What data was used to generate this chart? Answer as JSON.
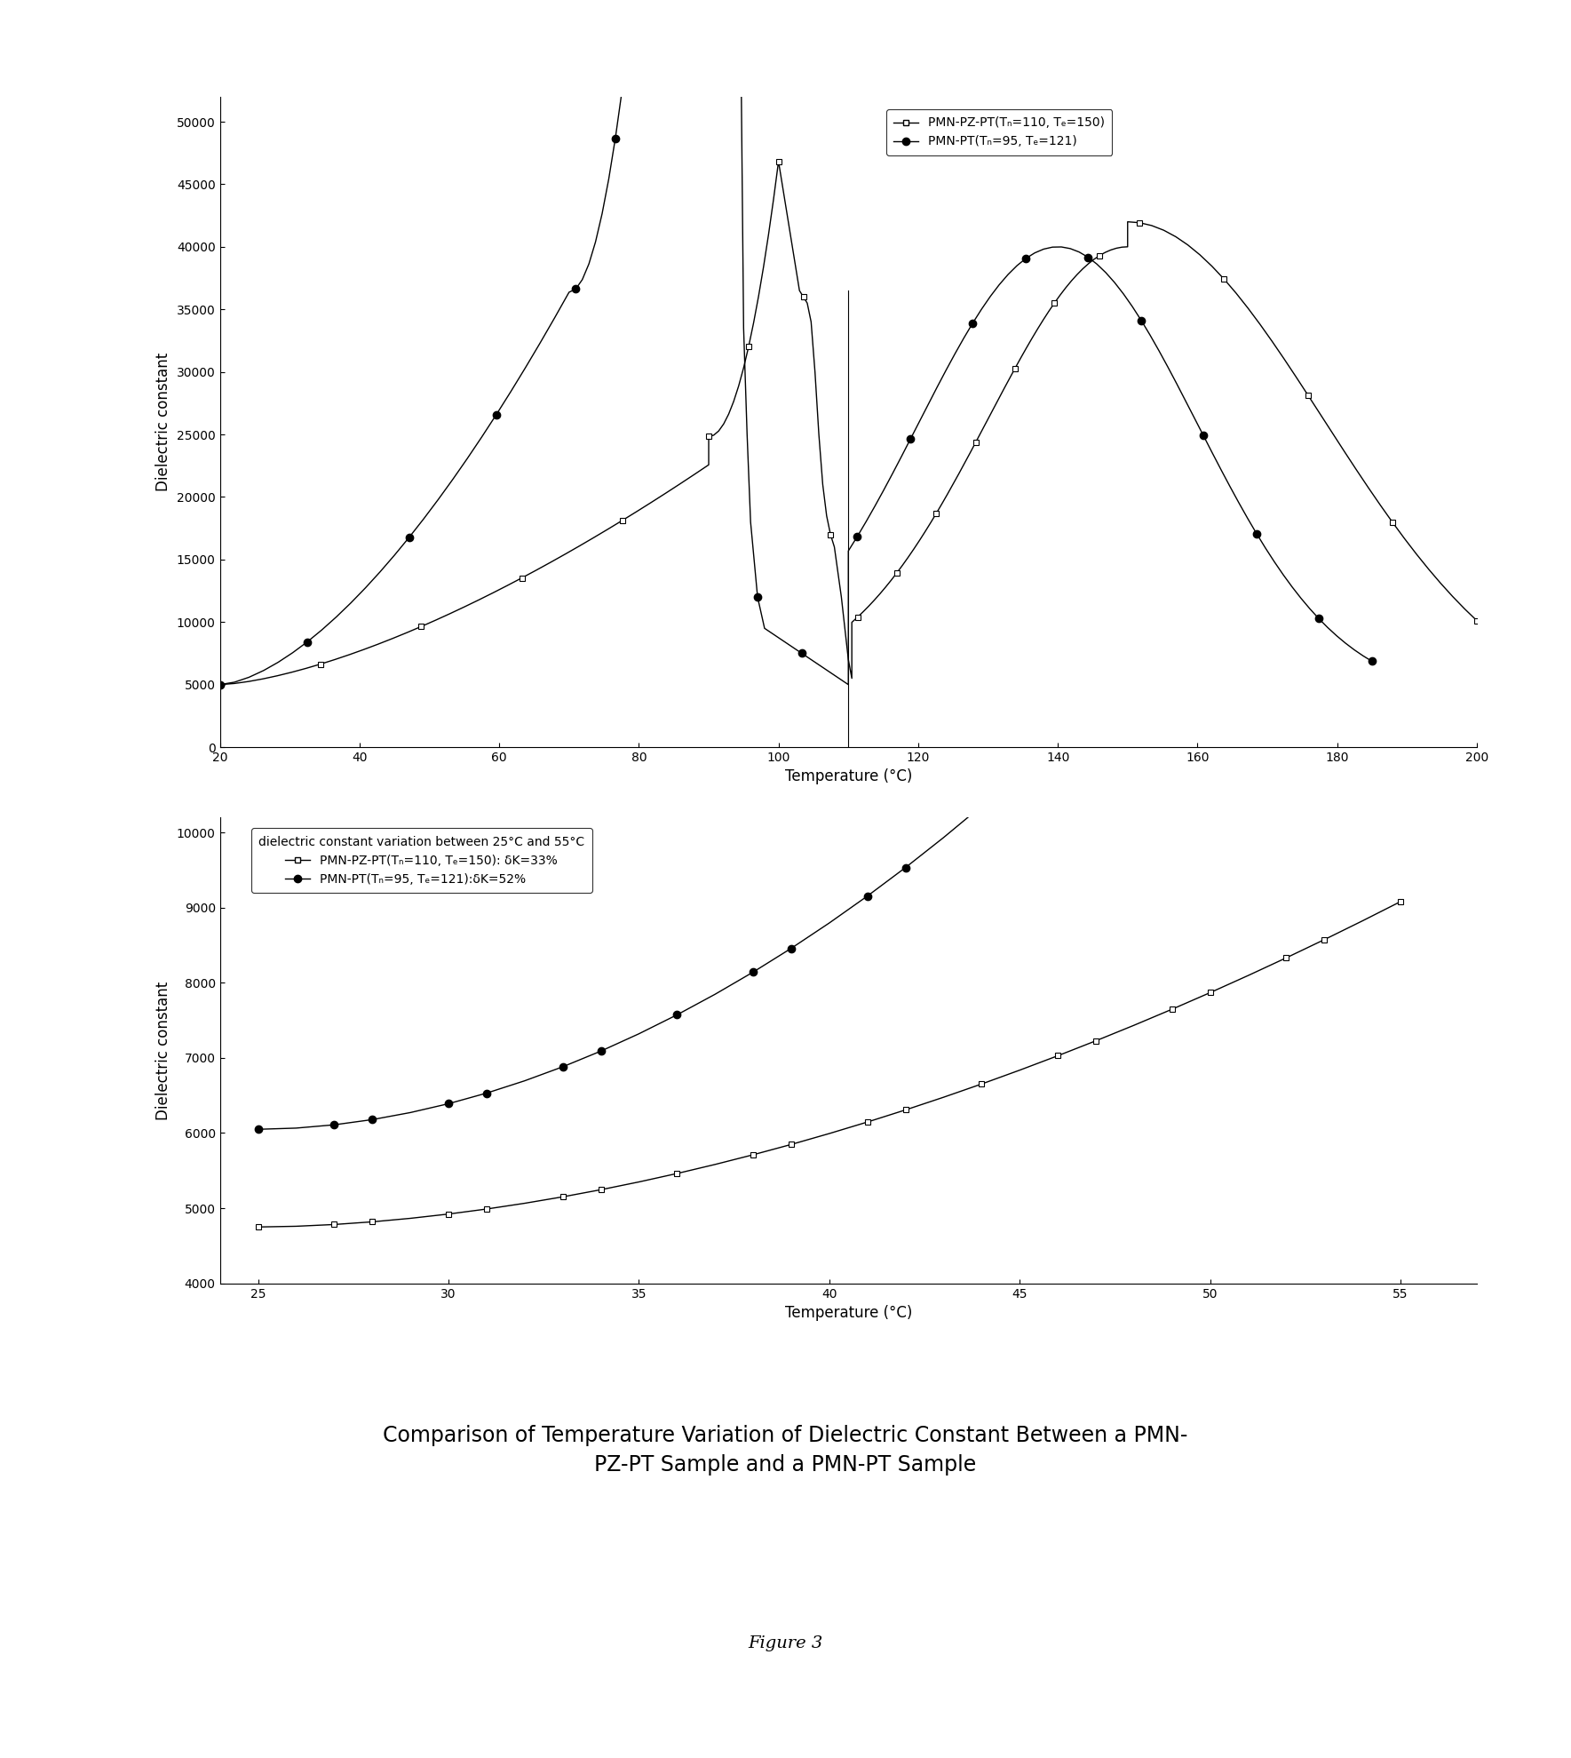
{
  "fig_width": 17.69,
  "fig_height": 19.79,
  "bg_color": "#ffffff",
  "plot1": {
    "xlim": [
      20,
      200
    ],
    "ylim": [
      0,
      52000
    ],
    "xlabel": "Temperature (°C)",
    "ylabel": "Dielectric constant",
    "xticks": [
      20,
      40,
      60,
      80,
      100,
      120,
      140,
      160,
      180,
      200
    ],
    "yticks": [
      0,
      5000,
      10000,
      15000,
      20000,
      25000,
      30000,
      35000,
      40000,
      45000,
      50000
    ],
    "legend1": "PMN-PZ-PT(Tₙ=110, Tₑ=150)",
    "legend2": "PMN-PT(Tₙ=95, Tₑ=121)"
  },
  "plot2": {
    "xlim": [
      24,
      57
    ],
    "ylim": [
      4000,
      10200
    ],
    "xlabel": "Temperature (°C)",
    "ylabel": "Dielectric constant",
    "xticks": [
      25,
      30,
      35,
      40,
      45,
      50,
      55
    ],
    "yticks": [
      4000,
      5000,
      6000,
      7000,
      8000,
      9000,
      10000
    ],
    "legend_header": "dielectric constant variation between 25°C and 55°C",
    "legend1": "PMN-PZ-PT(Tₙ=110, Tₑ=150): δK=33%",
    "legend2": "PMN-PT(Tₙ=95, Tₑ=121):δK=52%"
  },
  "title": "Comparison of Temperature Variation of Dielectric Constant Between a PMN-\nPZ-PT Sample and a PMN-PT Sample",
  "figure_label": "Figure 3"
}
